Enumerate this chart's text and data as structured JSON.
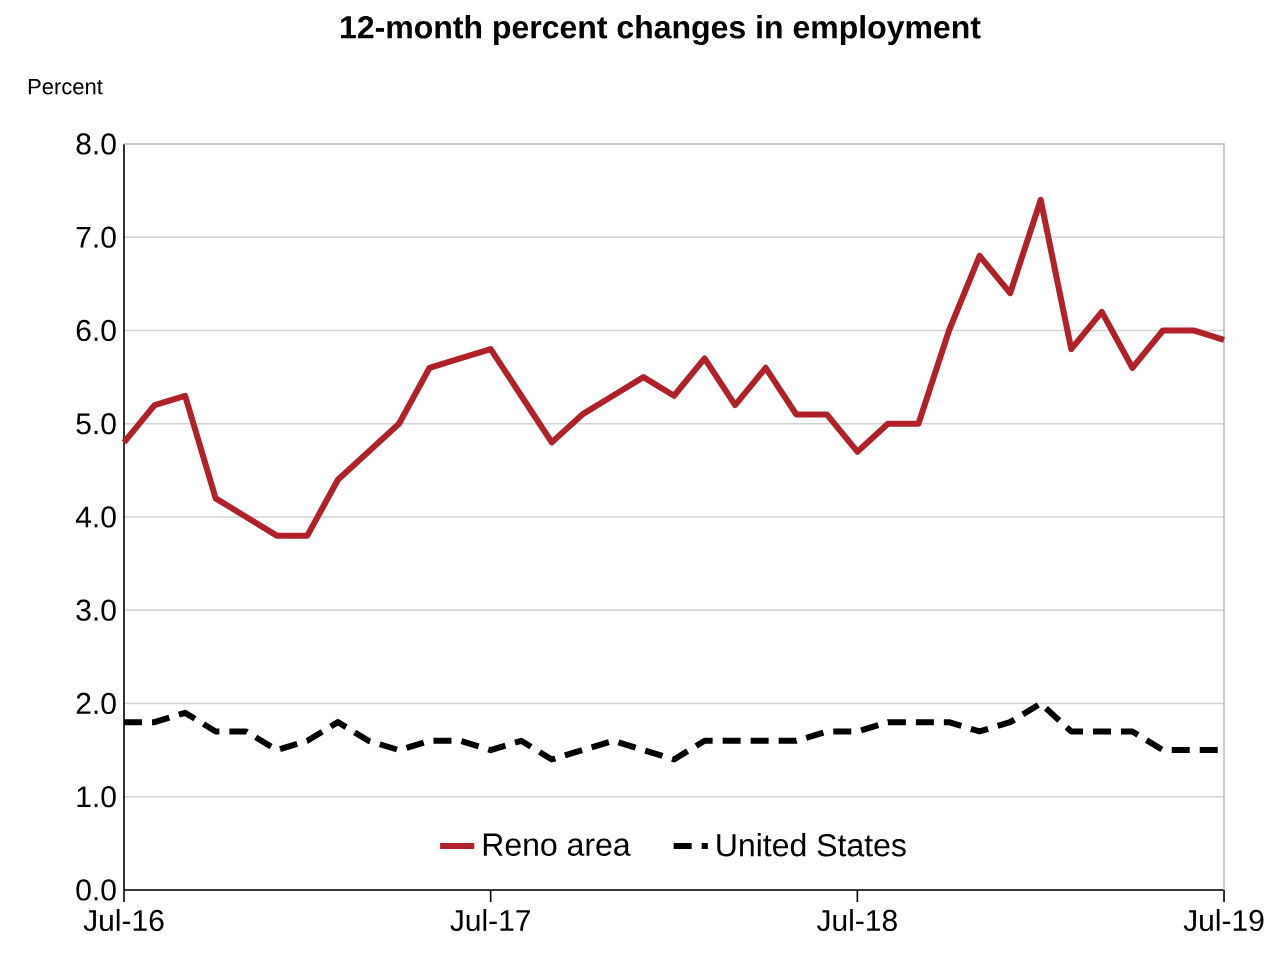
{
  "chart_data": {
    "type": "line",
    "title": "12-month percent changes in employment",
    "ylabel": "Percent",
    "x": [
      "2016-07",
      "2016-08",
      "2016-09",
      "2016-10",
      "2016-11",
      "2016-12",
      "2017-01",
      "2017-02",
      "2017-03",
      "2017-04",
      "2017-05",
      "2017-06",
      "2017-07",
      "2017-08",
      "2017-09",
      "2017-10",
      "2017-11",
      "2017-12",
      "2018-01",
      "2018-02",
      "2018-03",
      "2018-04",
      "2018-05",
      "2018-06",
      "2018-07",
      "2018-08",
      "2018-09",
      "2018-10",
      "2018-11",
      "2018-12",
      "2019-01",
      "2019-02",
      "2019-03",
      "2019-04",
      "2019-05",
      "2019-06",
      "2019-07"
    ],
    "series": [
      {
        "name": "Reno area",
        "color": "#b22028",
        "line_style": "solid",
        "values": [
          4.8,
          5.2,
          5.3,
          4.2,
          4.0,
          3.8,
          3.8,
          4.4,
          4.7,
          5.0,
          5.6,
          5.7,
          5.8,
          5.3,
          4.8,
          5.1,
          5.3,
          5.5,
          5.3,
          5.7,
          5.2,
          5.6,
          5.1,
          5.1,
          4.7,
          5.0,
          5.0,
          6.0,
          6.8,
          6.4,
          7.4,
          5.8,
          6.2,
          5.6,
          6.0,
          6.0,
          5.9
        ]
      },
      {
        "name": "United States",
        "color": "#000000",
        "line_style": "dashed",
        "values": [
          1.8,
          1.8,
          1.9,
          1.7,
          1.7,
          1.5,
          1.6,
          1.8,
          1.6,
          1.5,
          1.6,
          1.6,
          1.5,
          1.6,
          1.4,
          1.5,
          1.6,
          1.5,
          1.4,
          1.6,
          1.6,
          1.6,
          1.6,
          1.7,
          1.7,
          1.8,
          1.8,
          1.8,
          1.7,
          1.8,
          2.0,
          1.7,
          1.7,
          1.7,
          1.5,
          1.5,
          1.5
        ]
      }
    ],
    "xlim": [
      "2016-07",
      "2019-07"
    ],
    "xticks": [
      {
        "value": "2016-07",
        "label": "Jul-16"
      },
      {
        "value": "2017-07",
        "label": "Jul-17"
      },
      {
        "value": "2018-07",
        "label": "Jul-18"
      },
      {
        "value": "2019-07",
        "label": "Jul-19"
      }
    ],
    "ylim": [
      0,
      8
    ],
    "yticks": [
      {
        "value": 0,
        "label": "0.0"
      },
      {
        "value": 1,
        "label": "1.0"
      },
      {
        "value": 2,
        "label": "2.0"
      },
      {
        "value": 3,
        "label": "3.0"
      },
      {
        "value": 4,
        "label": "4.0"
      },
      {
        "value": 5,
        "label": "5.0"
      },
      {
        "value": 6,
        "label": "6.0"
      },
      {
        "value": 7,
        "label": "7.0"
      },
      {
        "value": 8,
        "label": "8.0"
      }
    ],
    "grid": "y",
    "legend": "bottom"
  }
}
